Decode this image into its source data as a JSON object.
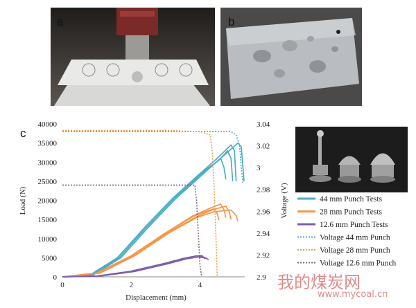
{
  "panel_labels": {
    "a": "a",
    "b": "b",
    "c": "c"
  },
  "chart_data": {
    "type": "line",
    "xlabel": "Displacement (mm)",
    "ylabel": "Load (N)",
    "y2label": "Voltage (V)",
    "xlim": [
      0,
      5.3
    ],
    "ylim": [
      0,
      40000
    ],
    "y2lim": [
      2.9,
      3.04
    ],
    "xticks": [
      "0",
      "2",
      "4"
    ],
    "xtick_values": [
      0,
      2,
      4
    ],
    "yticks": [
      "0",
      "5000",
      "10000",
      "15000",
      "20000",
      "25000",
      "30000",
      "35000",
      "40000"
    ],
    "ytick_values": [
      0,
      5000,
      10000,
      15000,
      20000,
      25000,
      30000,
      35000,
      40000
    ],
    "y2ticks": [
      "2.9",
      "2.92",
      "2.94",
      "2.96",
      "2.98",
      "3",
      "3.02",
      "3.04"
    ],
    "y2tick_values": [
      2.9,
      2.92,
      2.94,
      2.96,
      2.98,
      3.0,
      3.02,
      3.04
    ],
    "grid": false,
    "legend_position": "right",
    "series": [
      {
        "name": "44 mm Punch Tests",
        "axis": "left",
        "style": "solid",
        "color": "#4bacc6",
        "runs": [
          {
            "x": [
              0,
              0.8,
              1.6,
              2.4,
              3.2,
              4.0,
              4.5,
              4.9,
              5.0,
              5.05
            ],
            "y": [
              0,
              500,
              5000,
              13000,
              20500,
              27000,
              31000,
              34500,
              33000,
              25000
            ]
          },
          {
            "x": [
              0,
              0.85,
              1.65,
              2.45,
              3.25,
              4.05,
              4.55,
              4.8,
              4.9,
              4.95
            ],
            "y": [
              0,
              500,
              5000,
              13000,
              20500,
              27000,
              30500,
              33000,
              31000,
              25000
            ]
          },
          {
            "x": [
              0,
              0.9,
              1.7,
              2.5,
              3.3,
              4.1,
              4.6,
              5.1,
              5.2,
              5.28
            ],
            "y": [
              0,
              500,
              5000,
              13000,
              20500,
              27000,
              31000,
              35000,
              34000,
              25000
            ]
          },
          {
            "x": [
              0,
              0.85,
              1.6,
              2.4,
              3.2,
              4.0,
              4.4,
              4.6,
              4.7,
              4.75
            ],
            "y": [
              0,
              500,
              5000,
              13000,
              20500,
              27000,
              29500,
              31000,
              28500,
              25500
            ]
          }
        ]
      },
      {
        "name": "28 mm Punch Tests",
        "axis": "left",
        "style": "solid",
        "color": "#f79646",
        "runs": [
          {
            "x": [
              0,
              1.0,
              2.0,
              3.0,
              3.8,
              4.3,
              4.6,
              4.7,
              4.75
            ],
            "y": [
              0,
              1000,
              5500,
              11500,
              16000,
              18000,
              19000,
              17500,
              15500
            ]
          },
          {
            "x": [
              0,
              1.05,
              2.05,
              3.05,
              3.85,
              4.35,
              4.75,
              4.85,
              4.9
            ],
            "y": [
              0,
              1000,
              5500,
              11500,
              15500,
              17500,
              18500,
              17000,
              15000
            ]
          },
          {
            "x": [
              0,
              1.1,
              2.1,
              3.1,
              3.9,
              4.4,
              4.9,
              5.05,
              5.1
            ],
            "y": [
              0,
              1000,
              5500,
              11500,
              15500,
              17000,
              17500,
              16000,
              14500
            ]
          },
          {
            "x": [
              0,
              1.0,
              2.0,
              3.0,
              3.8,
              4.2,
              4.4,
              4.5,
              4.55
            ],
            "y": [
              0,
              1000,
              5500,
              11500,
              15800,
              17200,
              17800,
              16500,
              14800
            ]
          }
        ]
      },
      {
        "name": "12.6 mm Punch Tests",
        "axis": "left",
        "style": "solid",
        "color": "#7f5fa8",
        "runs": [
          {
            "x": [
              0,
              1.0,
              2.0,
              3.0,
              3.5,
              3.9,
              4.1,
              4.2
            ],
            "y": [
              0,
              200,
              1500,
              3600,
              4800,
              5500,
              5200,
              4800
            ]
          },
          {
            "x": [
              0,
              1.1,
              2.1,
              3.1,
              3.6,
              3.95,
              4.15,
              4.25
            ],
            "y": [
              0,
              200,
              1400,
              3500,
              4700,
              5200,
              5000,
              4500
            ]
          },
          {
            "x": [
              0,
              1.05,
              2.05,
              3.05,
              3.55,
              3.85,
              4.05,
              4.15
            ],
            "y": [
              0,
              200,
              1450,
              3550,
              4750,
              5400,
              5600,
              4700
            ]
          }
        ]
      },
      {
        "name": "Voltage 44 mm Punch",
        "axis": "right",
        "style": "dotted",
        "color": "#4bacc6",
        "x": [
          0,
          3.0,
          4.9,
          5.05,
          5.15,
          5.2,
          5.25
        ],
        "y": [
          3.033,
          3.033,
          3.033,
          3.03,
          3.02,
          3.0,
          2.985
        ]
      },
      {
        "name": "Voltage 28 mm Punch",
        "axis": "right",
        "style": "dotted",
        "color": "#f79646",
        "x": [
          0,
          3.0,
          4.0,
          4.3,
          4.35,
          4.4,
          4.45,
          4.5
        ],
        "y": [
          3.034,
          3.034,
          3.033,
          3.03,
          3.015,
          2.99,
          2.95,
          2.9
        ]
      },
      {
        "name": "Voltage 12.6 mm Punch",
        "axis": "right",
        "style": "dotted",
        "color": "#7f5fa8",
        "x": [
          0,
          3.5,
          3.85,
          3.9,
          3.95,
          4.0,
          4.05
        ],
        "y": [
          2.984,
          2.984,
          2.984,
          2.97,
          2.94,
          2.91,
          2.9
        ]
      }
    ]
  },
  "watermark": {
    "line1": "我的煤炭网",
    "line2": "www.mycoal.cn"
  }
}
